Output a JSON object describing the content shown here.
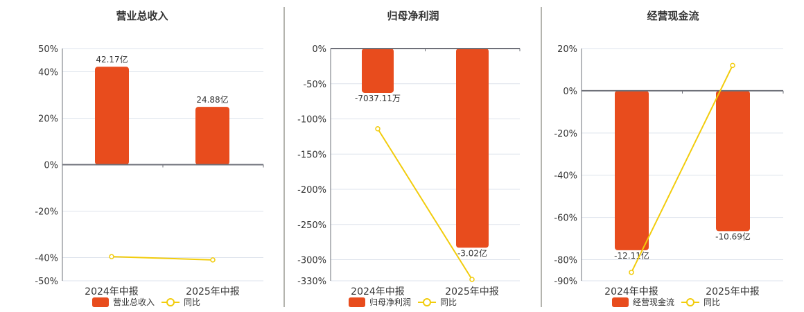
{
  "colors": {
    "bar": "#e84c1d",
    "line": "#f2cc0c",
    "grid": "#dde3ec",
    "axis": "#6e7079",
    "divider": "#b4b4ae",
    "text": "#333333"
  },
  "legend": {
    "yoy_label": "同比"
  },
  "chart_data": [
    {
      "type": "bar+line",
      "title": "营业总收入",
      "categories": [
        "2024年中报",
        "2025年中报"
      ],
      "series": [
        {
          "name": "营业总收入",
          "kind": "bar",
          "values": [
            42.17,
            24.88
          ],
          "unit": "亿",
          "labels": [
            "42.17亿",
            "24.88亿"
          ]
        },
        {
          "name": "同比",
          "kind": "line",
          "values": [
            -39.6,
            -41.0
          ],
          "unit": "%"
        }
      ],
      "yticks": [
        50,
        40,
        20,
        0,
        -20,
        -40,
        -50
      ],
      "ytick_labels": [
        "50%",
        "40%",
        "20%",
        "0%",
        "-20%",
        "-40%",
        "-50%"
      ],
      "ylim": [
        -50,
        50
      ],
      "grid": true,
      "legend_position": "bottom"
    },
    {
      "type": "bar+line",
      "title": "归母净利润",
      "categories": [
        "2024年中报",
        "2025年中报"
      ],
      "series": [
        {
          "name": "归母净利润",
          "kind": "bar",
          "values": [
            -63,
            -283
          ],
          "unit": "scaled",
          "labels": [
            "-7037.11万",
            "-3.02亿"
          ]
        },
        {
          "name": "同比",
          "kind": "line",
          "values": [
            -114,
            -328
          ],
          "unit": "%"
        }
      ],
      "yticks": [
        0,
        -50,
        -100,
        -150,
        -200,
        -250,
        -300,
        -330
      ],
      "ytick_labels": [
        "0%",
        "-50%",
        "-100%",
        "-150%",
        "-200%",
        "-250%",
        "-300%",
        "-330%"
      ],
      "ylim": [
        -330,
        0
      ],
      "grid": true,
      "legend_position": "bottom"
    },
    {
      "type": "bar+line",
      "title": "经营现金流",
      "categories": [
        "2024年中报",
        "2025年中报"
      ],
      "series": [
        {
          "name": "经营现金流",
          "kind": "bar",
          "values": [
            -75.5,
            -66.5
          ],
          "unit": "scaled",
          "labels": [
            "-12.11亿",
            "-10.69亿"
          ]
        },
        {
          "name": "同比",
          "kind": "line",
          "values": [
            -86,
            12
          ],
          "unit": "%"
        }
      ],
      "yticks": [
        20,
        0,
        -20,
        -40,
        -60,
        -80,
        -90
      ],
      "ytick_labels": [
        "20%",
        "0%",
        "-20%",
        "-40%",
        "-60%",
        "-80%",
        "-90%"
      ],
      "ylim": [
        -90,
        20
      ],
      "grid": true,
      "legend_position": "bottom"
    }
  ]
}
